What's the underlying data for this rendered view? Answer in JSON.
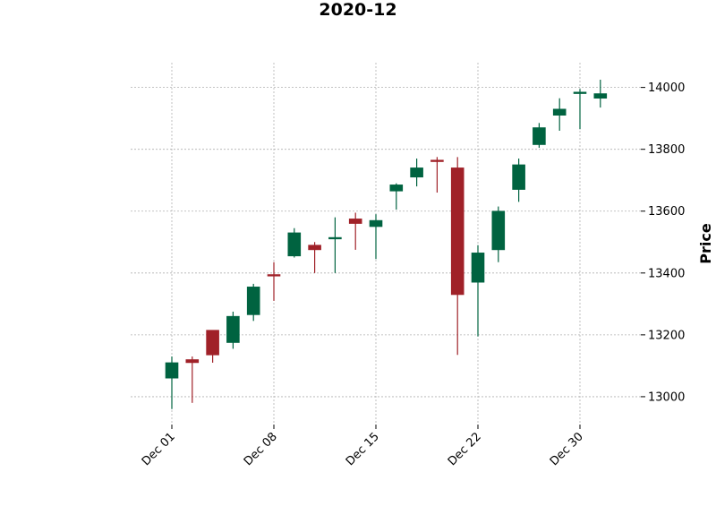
{
  "chart_data": {
    "type": "candlestick",
    "title": "2020-12",
    "ylabel": "Price",
    "xlabel": "",
    "ylim": [
      12910,
      14080
    ],
    "yticks": [
      13000,
      13200,
      13400,
      13600,
      13800,
      14000
    ],
    "yaxis_position": "right",
    "grid": true,
    "colors": {
      "up": "#006340",
      "down": "#a02128"
    },
    "xtick_labels": [
      {
        "index": 0,
        "label": "Dec 01"
      },
      {
        "index": 5,
        "label": "Dec 08"
      },
      {
        "index": 10,
        "label": "Dec 15"
      },
      {
        "index": 15,
        "label": "Dec 22"
      },
      {
        "index": 20,
        "label": "Dec 30"
      }
    ],
    "candles": [
      {
        "date": "2020-12-01",
        "open": 13060,
        "high": 13130,
        "low": 12960,
        "close": 13110
      },
      {
        "date": "2020-12-02",
        "open": 13120,
        "high": 13130,
        "low": 12980,
        "close": 13110
      },
      {
        "date": "2020-12-03",
        "open": 13215,
        "high": 13215,
        "low": 13110,
        "close": 13135
      },
      {
        "date": "2020-12-04",
        "open": 13175,
        "high": 13275,
        "low": 13155,
        "close": 13260
      },
      {
        "date": "2020-12-07",
        "open": 13265,
        "high": 13365,
        "low": 13245,
        "close": 13355
      },
      {
        "date": "2020-12-08",
        "open": 13395,
        "high": 13435,
        "low": 13310,
        "close": 13390
      },
      {
        "date": "2020-12-09",
        "open": 13455,
        "high": 13545,
        "low": 13450,
        "close": 13530
      },
      {
        "date": "2020-12-10",
        "open": 13490,
        "high": 13500,
        "low": 13400,
        "close": 13475
      },
      {
        "date": "2020-12-11",
        "open": 13510,
        "high": 13580,
        "low": 13400,
        "close": 13515
      },
      {
        "date": "2020-12-14",
        "open": 13575,
        "high": 13595,
        "low": 13475,
        "close": 13560
      },
      {
        "date": "2020-12-15",
        "open": 13550,
        "high": 13590,
        "low": 13445,
        "close": 13570
      },
      {
        "date": "2020-12-16",
        "open": 13665,
        "high": 13690,
        "low": 13605,
        "close": 13685
      },
      {
        "date": "2020-12-17",
        "open": 13710,
        "high": 13770,
        "low": 13680,
        "close": 13740
      },
      {
        "date": "2020-12-18",
        "open": 13765,
        "high": 13775,
        "low": 13660,
        "close": 13760
      },
      {
        "date": "2020-12-21",
        "open": 13740,
        "high": 13775,
        "low": 13135,
        "close": 13330
      },
      {
        "date": "2020-12-22",
        "open": 13370,
        "high": 13490,
        "low": 13195,
        "close": 13465
      },
      {
        "date": "2020-12-23",
        "open": 13475,
        "high": 13615,
        "low": 13435,
        "close": 13600
      },
      {
        "date": "2020-12-24",
        "open": 13670,
        "high": 13770,
        "low": 13630,
        "close": 13750
      },
      {
        "date": "2020-12-28",
        "open": 13815,
        "high": 13885,
        "low": 13805,
        "close": 13870
      },
      {
        "date": "2020-12-29",
        "open": 13910,
        "high": 13965,
        "low": 13860,
        "close": 13930
      },
      {
        "date": "2020-12-30",
        "open": 13980,
        "high": 13995,
        "low": 13865,
        "close": 13985
      },
      {
        "date": "2020-12-31",
        "open": 13965,
        "high": 14025,
        "low": 13935,
        "close": 13980
      }
    ]
  }
}
